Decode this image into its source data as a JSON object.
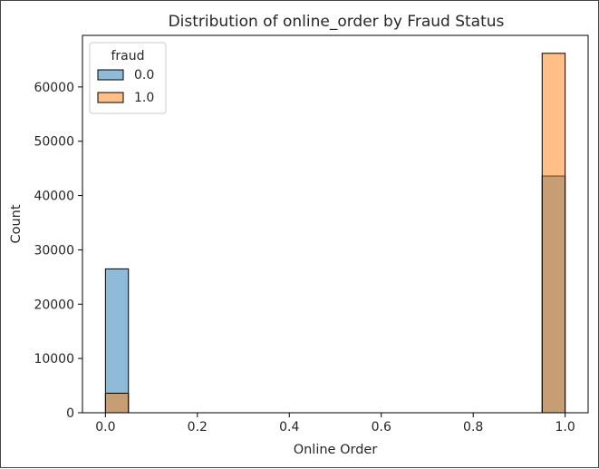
{
  "chart_data": {
    "type": "bar",
    "title": "Distribution of online_order by Fraud Status",
    "xlabel": "Online Order",
    "ylabel": "Count",
    "xlim": [
      -0.05,
      1.05
    ],
    "ylim": [
      0,
      69500
    ],
    "x_ticks": [
      "0.0",
      "0.2",
      "0.4",
      "0.6",
      "0.8",
      "1.0"
    ],
    "y_ticks": [
      "0",
      "10000",
      "20000",
      "30000",
      "40000",
      "50000",
      "60000"
    ],
    "bin_width": 0.05,
    "grid": false,
    "legend": {
      "title": "fraud",
      "placement": "top-left"
    },
    "series": [
      {
        "name": "0.0",
        "color": "#1f77b4",
        "bins": [
          {
            "x0": 0.0,
            "x1": 0.05,
            "count": 26500
          },
          {
            "x0": 0.95,
            "x1": 1.0,
            "count": 43600
          }
        ]
      },
      {
        "name": "1.0",
        "color": "#ff7f0e",
        "bins": [
          {
            "x0": 0.0,
            "x1": 0.05,
            "count": 3600
          },
          {
            "x0": 0.95,
            "x1": 1.0,
            "count": 66200
          }
        ]
      }
    ]
  }
}
